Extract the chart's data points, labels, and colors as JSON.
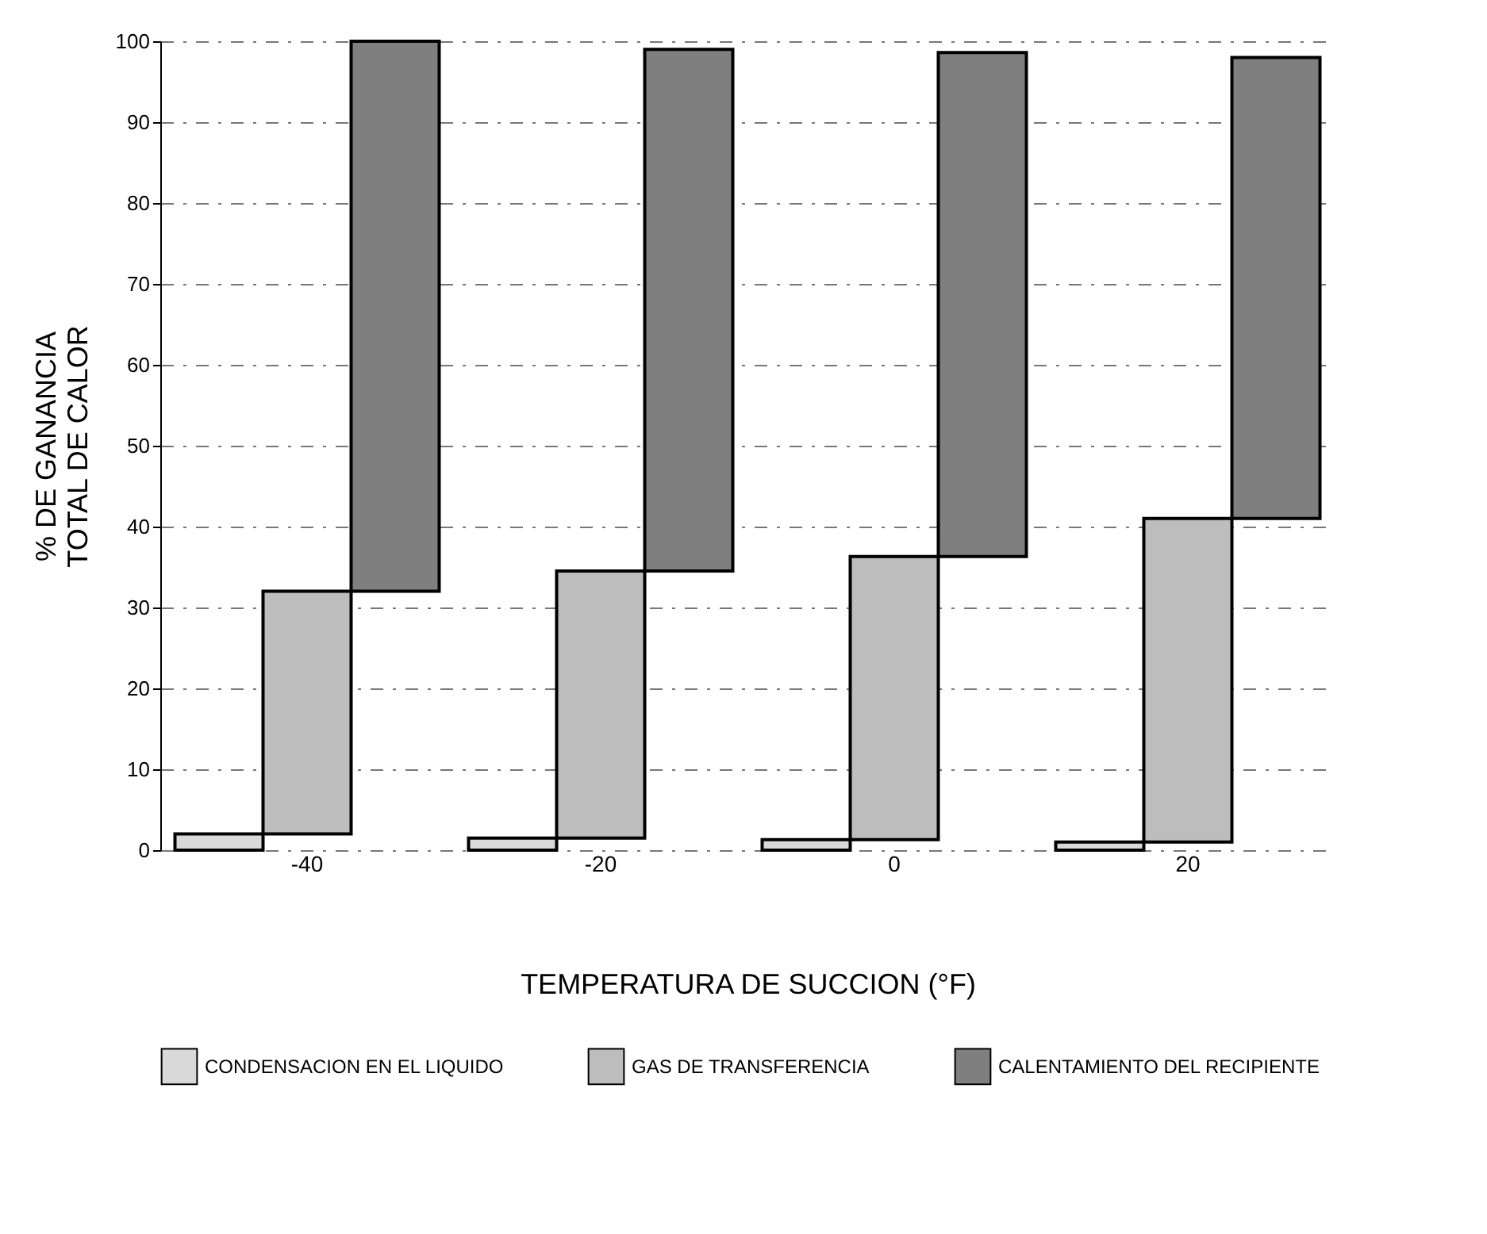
{
  "chart_data": {
    "type": "bar",
    "xlabel": "TEMPERATURA  DE SUCCION (°F)",
    "ylabel": "% DE GANANCIA\nTOTAL DE CALOR",
    "categories": [
      "-40",
      "-20",
      "0",
      "20"
    ],
    "series": [
      {
        "name": "CONDENSACION EN EL LIQUIDO",
        "color": "#d9d9d9",
        "values": [
          2,
          1.5,
          1.3,
          1
        ],
        "base": [
          0,
          0,
          0,
          0
        ]
      },
      {
        "name": "GAS DE TRANSFERENCIA",
        "color": "#bdbdbd",
        "values": [
          30,
          33,
          35,
          40
        ],
        "base": [
          2,
          1.5,
          1.3,
          1
        ]
      },
      {
        "name": "CALENTAMIENTO DEL RECIPIENTE",
        "color": "#7f7f7f",
        "values": [
          68,
          64.5,
          62.3,
          57
        ],
        "base": [
          32,
          34.5,
          36.3,
          41
        ]
      }
    ],
    "ylim": [
      0,
      100
    ],
    "yticks": [
      0,
      10,
      20,
      30,
      40,
      50,
      60,
      70,
      80,
      90,
      100
    ],
    "grid": "y",
    "legend": "bottom"
  }
}
